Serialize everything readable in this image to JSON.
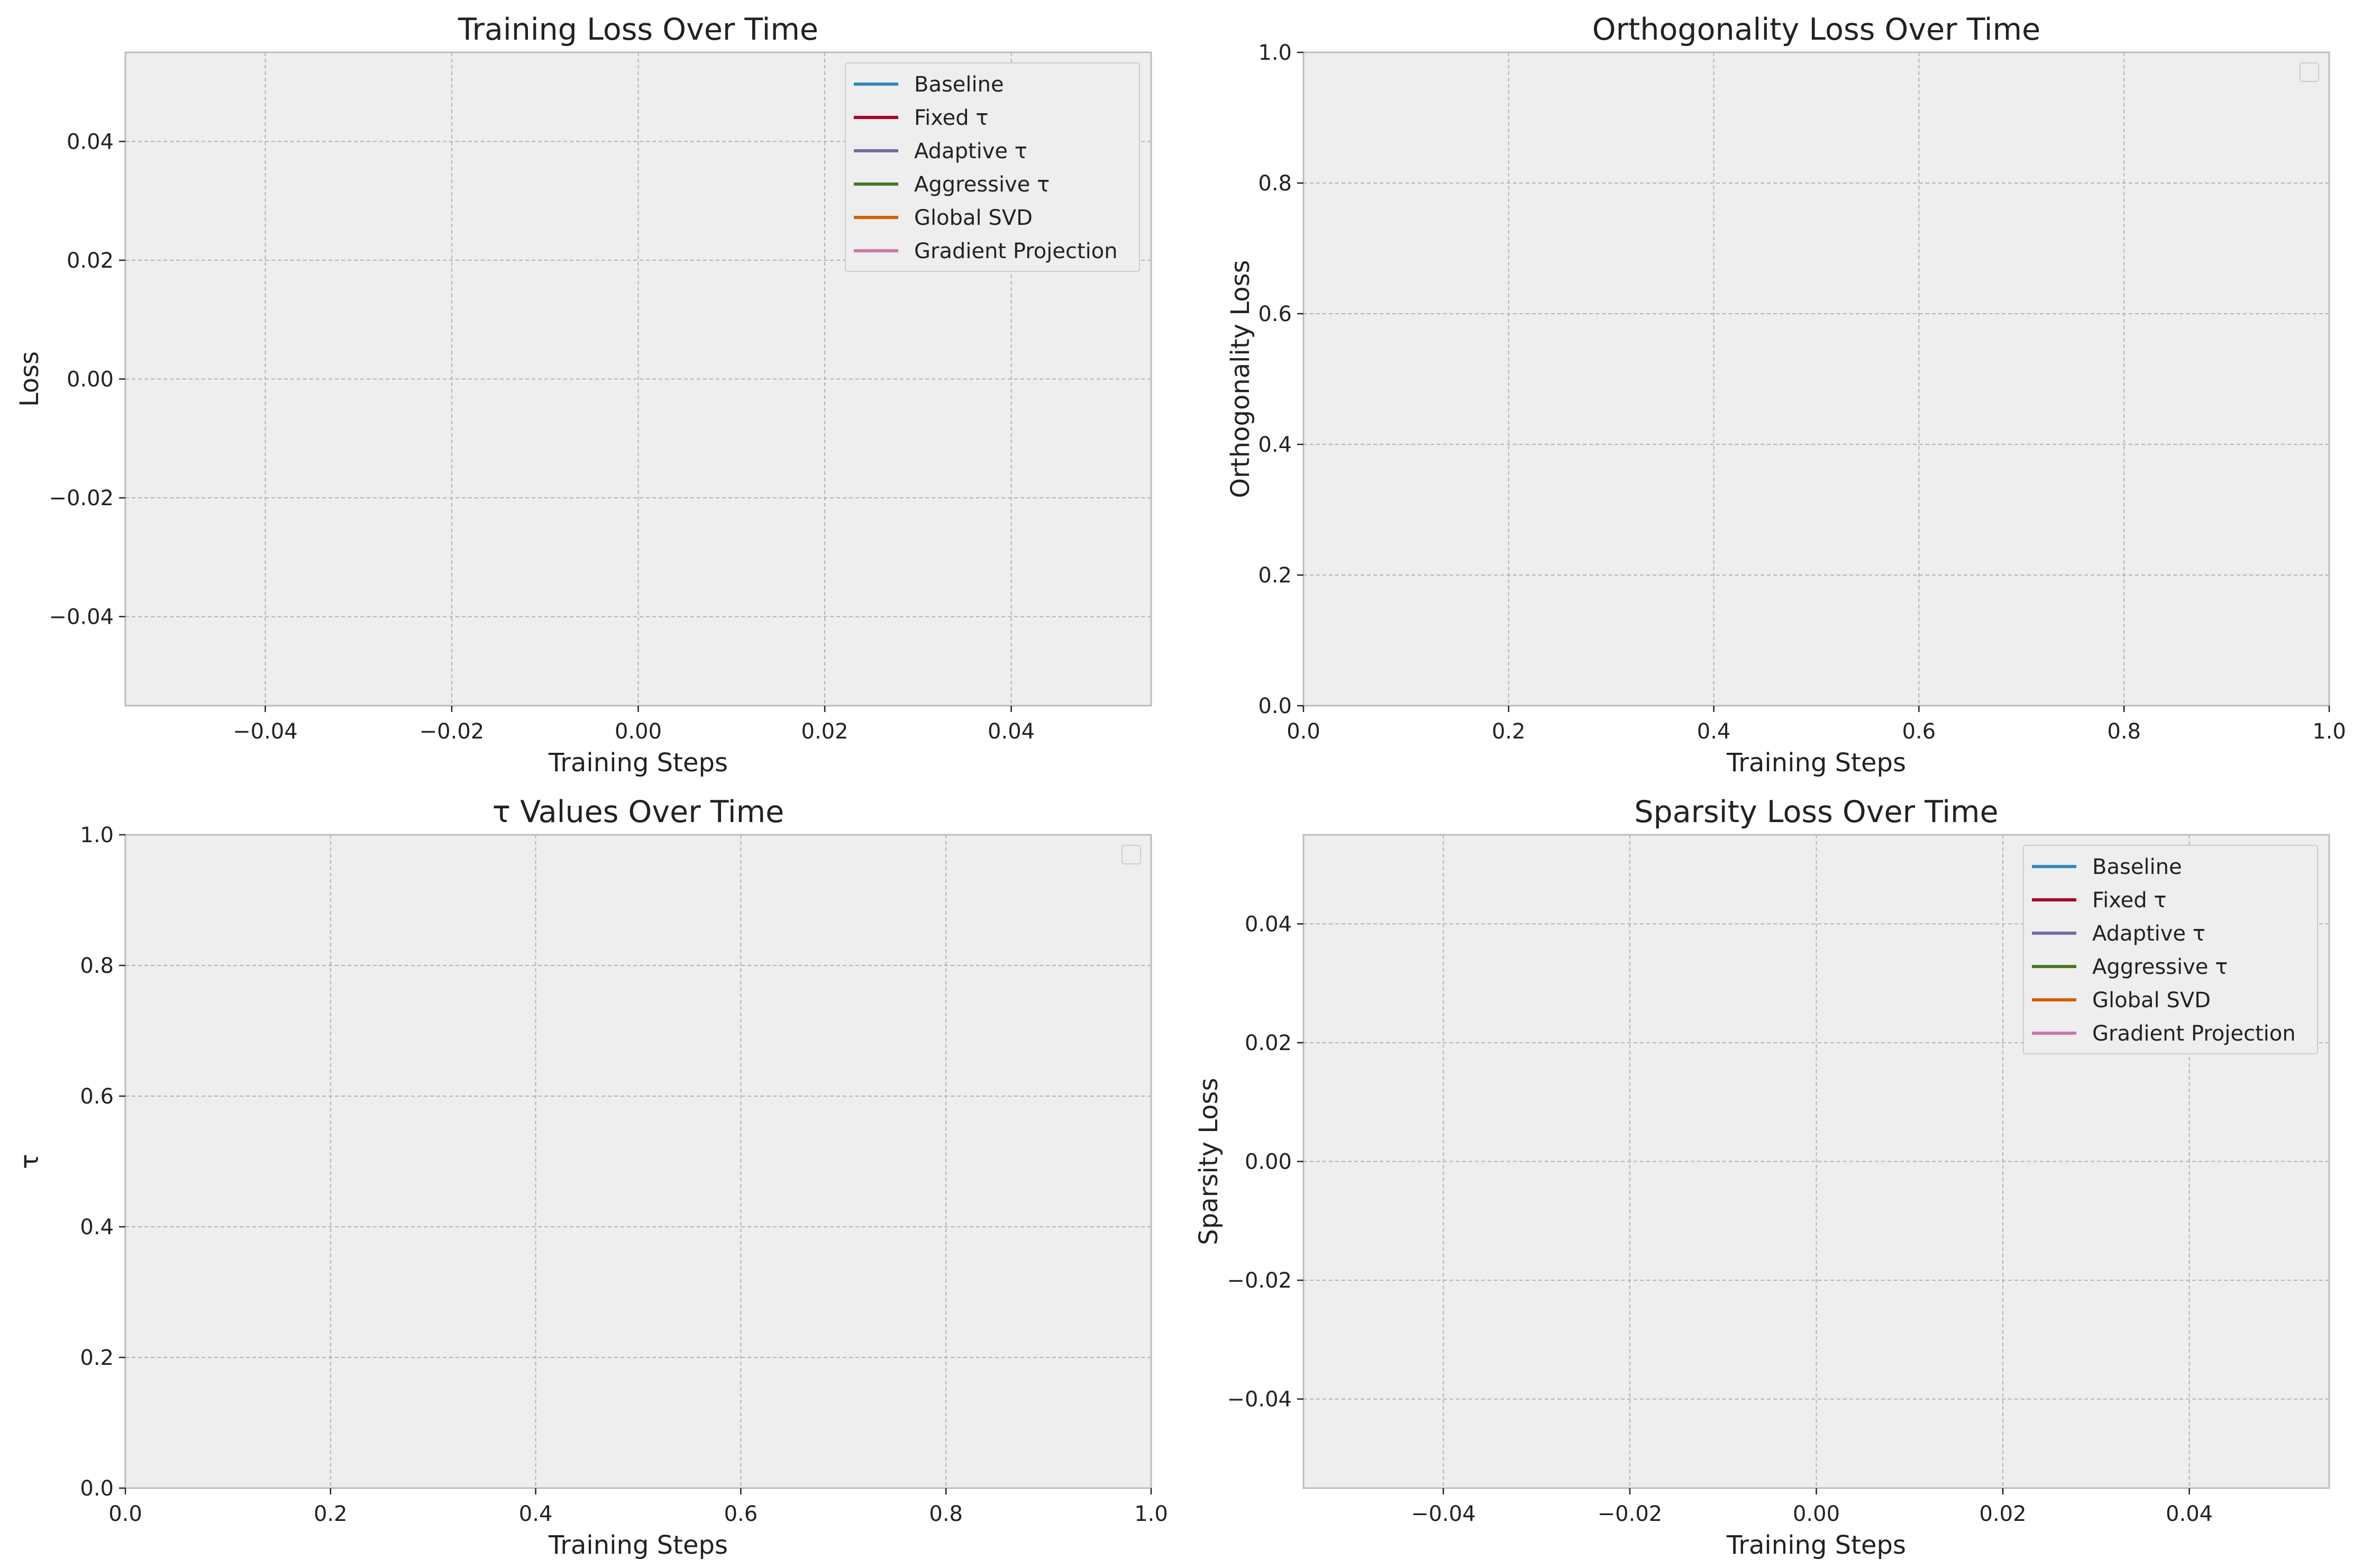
{
  "chart_data": [
    {
      "type": "line",
      "title": "Training Loss Over Time",
      "xlabel": "Training Steps",
      "ylabel": "Loss",
      "xlim": [
        -0.055,
        0.055
      ],
      "ylim": [
        -0.055,
        0.055
      ],
      "xticks": [
        "−0.04",
        "−0.02",
        "0.00",
        "0.02",
        "0.04"
      ],
      "yticks": [
        "−0.04",
        "−0.02",
        "0.00",
        "0.02",
        "0.04"
      ],
      "xtick_values": [
        -0.04,
        -0.02,
        0.0,
        0.02,
        0.04
      ],
      "ytick_values": [
        -0.04,
        -0.02,
        0.0,
        0.02,
        0.04
      ],
      "grid": true,
      "legend_position": "top-right",
      "series": [
        {
          "name": "Baseline",
          "color": "#348ABD",
          "x": [],
          "y": []
        },
        {
          "name": "Fixed τ",
          "color": "#A60628",
          "x": [],
          "y": []
        },
        {
          "name": "Adaptive τ",
          "color": "#7A68A6",
          "x": [],
          "y": []
        },
        {
          "name": "Aggressive τ",
          "color": "#467821",
          "x": [],
          "y": []
        },
        {
          "name": "Global SVD",
          "color": "#D55E00",
          "x": [],
          "y": []
        },
        {
          "name": "Gradient Projection",
          "color": "#CC79A7",
          "x": [],
          "y": []
        }
      ]
    },
    {
      "type": "line",
      "title": "Orthogonality Loss Over Time",
      "xlabel": "Training Steps",
      "ylabel": "Orthogonality Loss",
      "xlim": [
        0,
        1
      ],
      "ylim": [
        0,
        1
      ],
      "xticks": [
        "0.0",
        "0.2",
        "0.4",
        "0.6",
        "0.8",
        "1.0"
      ],
      "yticks": [
        "0.0",
        "0.2",
        "0.4",
        "0.6",
        "0.8",
        "1.0"
      ],
      "xtick_values": [
        0,
        0.2,
        0.4,
        0.6,
        0.8,
        1.0
      ],
      "ytick_values": [
        0,
        0.2,
        0.4,
        0.6,
        0.8,
        1.0
      ],
      "grid": true,
      "legend_position": "top-right",
      "series": []
    },
    {
      "type": "line",
      "title": "τ Values Over Time",
      "xlabel": "Training Steps",
      "ylabel": "τ",
      "xlim": [
        0,
        1
      ],
      "ylim": [
        0,
        1
      ],
      "xticks": [
        "0.0",
        "0.2",
        "0.4",
        "0.6",
        "0.8",
        "1.0"
      ],
      "yticks": [
        "0.0",
        "0.2",
        "0.4",
        "0.6",
        "0.8",
        "1.0"
      ],
      "xtick_values": [
        0,
        0.2,
        0.4,
        0.6,
        0.8,
        1.0
      ],
      "ytick_values": [
        0,
        0.2,
        0.4,
        0.6,
        0.8,
        1.0
      ],
      "grid": true,
      "legend_position": "top-right",
      "series": []
    },
    {
      "type": "line",
      "title": "Sparsity Loss Over Time",
      "xlabel": "Training Steps",
      "ylabel": "Sparsity Loss",
      "xlim": [
        -0.055,
        0.055
      ],
      "ylim": [
        -0.055,
        0.055
      ],
      "xticks": [
        "−0.04",
        "−0.02",
        "0.00",
        "0.02",
        "0.04"
      ],
      "yticks": [
        "−0.04",
        "−0.02",
        "0.00",
        "0.02",
        "0.04"
      ],
      "xtick_values": [
        -0.04,
        -0.02,
        0.0,
        0.02,
        0.04
      ],
      "ytick_values": [
        -0.04,
        -0.02,
        0.0,
        0.02,
        0.04
      ],
      "grid": true,
      "legend_position": "top-right",
      "series": [
        {
          "name": "Baseline",
          "color": "#348ABD",
          "x": [],
          "y": []
        },
        {
          "name": "Fixed τ",
          "color": "#A60628",
          "x": [],
          "y": []
        },
        {
          "name": "Adaptive τ",
          "color": "#7A68A6",
          "x": [],
          "y": []
        },
        {
          "name": "Aggressive τ",
          "color": "#467821",
          "x": [],
          "y": []
        },
        {
          "name": "Global SVD",
          "color": "#D55E00",
          "x": [],
          "y": []
        },
        {
          "name": "Gradient Projection",
          "color": "#CC79A7",
          "x": [],
          "y": []
        }
      ]
    }
  ],
  "style": {
    "plot_background": "#EEEEEE",
    "grid_color": "#B2B2B2",
    "spine_color": "#BCBCBC",
    "figure_background": "#FFFFFF"
  }
}
